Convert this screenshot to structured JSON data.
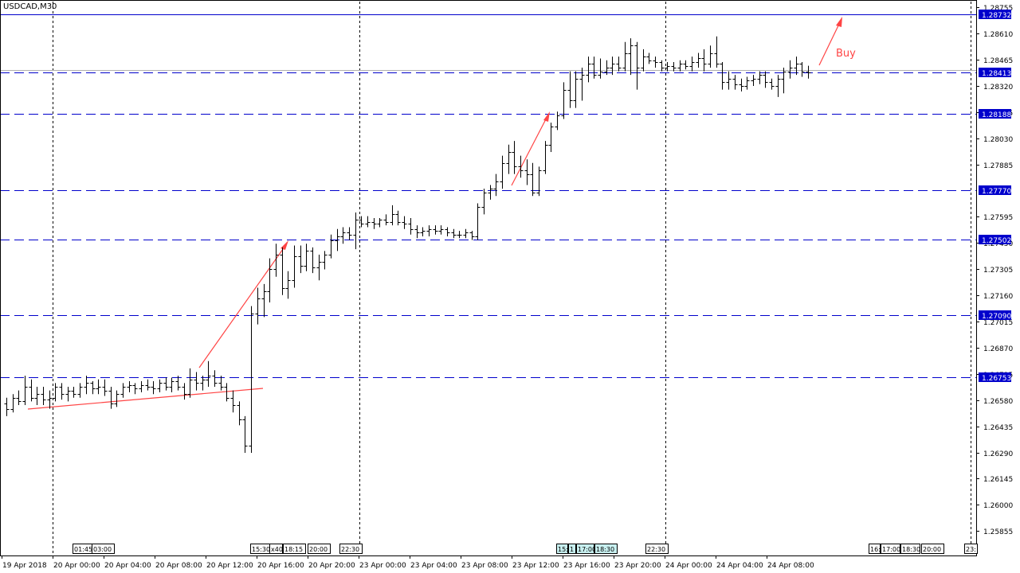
{
  "chart_data": {
    "type": "ohlc",
    "symbol_label": "USDCAD,M30",
    "colors": {
      "bars": "#000000",
      "hlines": "#0000cc",
      "price_box": "#0000cc",
      "trend": "#ff4444",
      "vsep": "#000000",
      "time_marker_bg": "#c8f0f0"
    },
    "y_ticks": [
      "1.28755",
      "1.28610",
      "1.28465",
      "1.28320",
      "1.28175",
      "1.28030",
      "1.27885",
      "1.27595",
      "1.27450",
      "1.27305",
      "1.27160",
      "1.27015",
      "1.26870",
      "1.26725",
      "1.26580",
      "1.26435",
      "1.26290",
      "1.26145",
      "1.26000",
      "1.25855"
    ],
    "ylim": [
      1.2578,
      1.288
    ],
    "hlines": [
      1.28732,
      1.28413,
      1.28188,
      1.2777,
      1.27502,
      1.2709,
      1.26753
    ],
    "hline_labels": [
      "1.28732",
      "1.28413",
      "1.28188",
      "1.27770",
      "1.27502",
      "1.27090",
      "1.26753"
    ],
    "x_labels": [
      "19 Apr 2018",
      "20 Apr 00:00",
      "20 Apr 04:00",
      "20 Apr 08:00",
      "20 Apr 12:00",
      "20 Apr 16:00",
      "20 Apr 20:00",
      "23 Apr 00:00",
      "23 Apr 04:00",
      "23 Apr 08:00",
      "23 Apr 12:00",
      "23 Apr 16:00",
      "23 Apr 20:00",
      "24 Apr 00:00",
      "24 Apr 04:00",
      "24 Apr 08:00"
    ],
    "time_markers": [
      "01:45",
      "03:00",
      "15:30",
      "x40",
      "18:15",
      "20:00",
      "22:30",
      "15:",
      "1",
      "17:00",
      "18:30",
      "22:30",
      "16:",
      "17:00",
      "18:30",
      "20:00",
      "23:"
    ],
    "annotation": "Buy",
    "bars": [
      {
        "o": 1.2661,
        "h": 1.2664,
        "l": 1.2654,
        "c": 1.2658
      },
      {
        "o": 1.2658,
        "h": 1.2666,
        "l": 1.2656,
        "c": 1.2664
      },
      {
        "o": 1.2664,
        "h": 1.2668,
        "l": 1.266,
        "c": 1.2662
      },
      {
        "o": 1.2662,
        "h": 1.2676,
        "l": 1.266,
        "c": 1.267
      },
      {
        "o": 1.267,
        "h": 1.2674,
        "l": 1.2662,
        "c": 1.2664
      },
      {
        "o": 1.2664,
        "h": 1.267,
        "l": 1.266,
        "c": 1.2666
      },
      {
        "o": 1.2666,
        "h": 1.267,
        "l": 1.266,
        "c": 1.2663
      },
      {
        "o": 1.2663,
        "h": 1.2668,
        "l": 1.2658,
        "c": 1.2664
      },
      {
        "o": 1.2664,
        "h": 1.2672,
        "l": 1.2662,
        "c": 1.267
      },
      {
        "o": 1.267,
        "h": 1.2672,
        "l": 1.2663,
        "c": 1.2666
      },
      {
        "o": 1.2666,
        "h": 1.267,
        "l": 1.2662,
        "c": 1.2668
      },
      {
        "o": 1.2668,
        "h": 1.267,
        "l": 1.2664,
        "c": 1.2666
      },
      {
        "o": 1.2666,
        "h": 1.2672,
        "l": 1.2664,
        "c": 1.267
      },
      {
        "o": 1.267,
        "h": 1.2676,
        "l": 1.2666,
        "c": 1.2672
      },
      {
        "o": 1.2672,
        "h": 1.2673,
        "l": 1.2666,
        "c": 1.2669
      },
      {
        "o": 1.2669,
        "h": 1.2674,
        "l": 1.2666,
        "c": 1.267
      },
      {
        "o": 1.267,
        "h": 1.2674,
        "l": 1.2665,
        "c": 1.2668
      },
      {
        "o": 1.2668,
        "h": 1.267,
        "l": 1.2658,
        "c": 1.2661
      },
      {
        "o": 1.2661,
        "h": 1.2668,
        "l": 1.2659,
        "c": 1.2666
      },
      {
        "o": 1.2666,
        "h": 1.2672,
        "l": 1.2664,
        "c": 1.267
      },
      {
        "o": 1.267,
        "h": 1.2673,
        "l": 1.2667,
        "c": 1.2671
      },
      {
        "o": 1.2671,
        "h": 1.2672,
        "l": 1.2666,
        "c": 1.2669
      },
      {
        "o": 1.2669,
        "h": 1.2673,
        "l": 1.2667,
        "c": 1.2671
      },
      {
        "o": 1.2671,
        "h": 1.2674,
        "l": 1.2668,
        "c": 1.267
      },
      {
        "o": 1.267,
        "h": 1.2673,
        "l": 1.2666,
        "c": 1.2669
      },
      {
        "o": 1.2669,
        "h": 1.2674,
        "l": 1.2667,
        "c": 1.2672
      },
      {
        "o": 1.2672,
        "h": 1.2675,
        "l": 1.2668,
        "c": 1.267
      },
      {
        "o": 1.267,
        "h": 1.2675,
        "l": 1.2667,
        "c": 1.2673
      },
      {
        "o": 1.2673,
        "h": 1.2676,
        "l": 1.2668,
        "c": 1.267
      },
      {
        "o": 1.267,
        "h": 1.2672,
        "l": 1.2663,
        "c": 1.2666
      },
      {
        "o": 1.2666,
        "h": 1.268,
        "l": 1.2664,
        "c": 1.2674
      },
      {
        "o": 1.2674,
        "h": 1.2678,
        "l": 1.2668,
        "c": 1.2672
      },
      {
        "o": 1.2672,
        "h": 1.2676,
        "l": 1.2668,
        "c": 1.2674
      },
      {
        "o": 1.2674,
        "h": 1.2684,
        "l": 1.267,
        "c": 1.2676
      },
      {
        "o": 1.2676,
        "h": 1.2679,
        "l": 1.267,
        "c": 1.2672
      },
      {
        "o": 1.2672,
        "h": 1.2676,
        "l": 1.2668,
        "c": 1.267
      },
      {
        "o": 1.267,
        "h": 1.2672,
        "l": 1.2662,
        "c": 1.2664
      },
      {
        "o": 1.2664,
        "h": 1.2668,
        "l": 1.2656,
        "c": 1.266
      },
      {
        "o": 1.266,
        "h": 1.2662,
        "l": 1.2649,
        "c": 1.2652
      },
      {
        "o": 1.2652,
        "h": 1.2654,
        "l": 1.2634,
        "c": 1.2638
      },
      {
        "o": 1.2638,
        "h": 1.2714,
        "l": 1.2634,
        "c": 1.271
      },
      {
        "o": 1.271,
        "h": 1.2724,
        "l": 1.2704,
        "c": 1.2718
      },
      {
        "o": 1.2718,
        "h": 1.2726,
        "l": 1.2708,
        "c": 1.2722
      },
      {
        "o": 1.2722,
        "h": 1.274,
        "l": 1.2716,
        "c": 1.2734
      },
      {
        "o": 1.2734,
        "h": 1.2748,
        "l": 1.273,
        "c": 1.2742
      },
      {
        "o": 1.2742,
        "h": 1.2746,
        "l": 1.272,
        "c": 1.2724
      },
      {
        "o": 1.2724,
        "h": 1.2733,
        "l": 1.2718,
        "c": 1.2728
      },
      {
        "o": 1.2728,
        "h": 1.2747,
        "l": 1.2724,
        "c": 1.2741
      },
      {
        "o": 1.2741,
        "h": 1.2747,
        "l": 1.2732,
        "c": 1.2736
      },
      {
        "o": 1.2736,
        "h": 1.2748,
        "l": 1.2733,
        "c": 1.2744
      },
      {
        "o": 1.2744,
        "h": 1.2746,
        "l": 1.2732,
        "c": 1.2735
      },
      {
        "o": 1.2735,
        "h": 1.2742,
        "l": 1.2728,
        "c": 1.2738
      },
      {
        "o": 1.2738,
        "h": 1.2744,
        "l": 1.2734,
        "c": 1.2742
      },
      {
        "o": 1.2742,
        "h": 1.2753,
        "l": 1.274,
        "c": 1.275
      },
      {
        "o": 1.275,
        "h": 1.2756,
        "l": 1.2744,
        "c": 1.2752
      },
      {
        "o": 1.2752,
        "h": 1.2757,
        "l": 1.2748,
        "c": 1.2754
      },
      {
        "o": 1.2754,
        "h": 1.2757,
        "l": 1.275,
        "c": 1.2753
      },
      {
        "o": 1.2753,
        "h": 1.2765,
        "l": 1.2745,
        "c": 1.2761
      },
      {
        "o": 1.2761,
        "h": 1.2763,
        "l": 1.2757,
        "c": 1.2759
      },
      {
        "o": 1.2759,
        "h": 1.2763,
        "l": 1.2757,
        "c": 1.276
      },
      {
        "o": 1.276,
        "h": 1.2762,
        "l": 1.2756,
        "c": 1.2759
      },
      {
        "o": 1.2759,
        "h": 1.2762,
        "l": 1.2757,
        "c": 1.2761
      },
      {
        "o": 1.2761,
        "h": 1.2764,
        "l": 1.2758,
        "c": 1.276
      },
      {
        "o": 1.276,
        "h": 1.2769,
        "l": 1.2758,
        "c": 1.2764
      },
      {
        "o": 1.2764,
        "h": 1.2766,
        "l": 1.2758,
        "c": 1.276
      },
      {
        "o": 1.276,
        "h": 1.2763,
        "l": 1.2756,
        "c": 1.2759
      },
      {
        "o": 1.2759,
        "h": 1.2762,
        "l": 1.2753,
        "c": 1.2756
      },
      {
        "o": 1.2756,
        "h": 1.2758,
        "l": 1.2751,
        "c": 1.2754
      },
      {
        "o": 1.2754,
        "h": 1.2757,
        "l": 1.2752,
        "c": 1.2755
      },
      {
        "o": 1.2755,
        "h": 1.2758,
        "l": 1.2752,
        "c": 1.2756
      },
      {
        "o": 1.2756,
        "h": 1.2758,
        "l": 1.2753,
        "c": 1.2755
      },
      {
        "o": 1.2755,
        "h": 1.2758,
        "l": 1.2753,
        "c": 1.2756
      },
      {
        "o": 1.2756,
        "h": 1.2757,
        "l": 1.2752,
        "c": 1.2754
      },
      {
        "o": 1.2754,
        "h": 1.2756,
        "l": 1.2751,
        "c": 1.2753
      },
      {
        "o": 1.2753,
        "h": 1.2755,
        "l": 1.2751,
        "c": 1.2753
      },
      {
        "o": 1.2753,
        "h": 1.2756,
        "l": 1.2751,
        "c": 1.2754
      },
      {
        "o": 1.2754,
        "h": 1.2755,
        "l": 1.275,
        "c": 1.2752
      },
      {
        "o": 1.2752,
        "h": 1.277,
        "l": 1.275,
        "c": 1.2768
      },
      {
        "o": 1.2768,
        "h": 1.2778,
        "l": 1.2764,
        "c": 1.2776
      },
      {
        "o": 1.2776,
        "h": 1.278,
        "l": 1.2772,
        "c": 1.2778
      },
      {
        "o": 1.2778,
        "h": 1.2786,
        "l": 1.2774,
        "c": 1.2782
      },
      {
        "o": 1.2782,
        "h": 1.2796,
        "l": 1.2778,
        "c": 1.2792
      },
      {
        "o": 1.2792,
        "h": 1.2802,
        "l": 1.2786,
        "c": 1.2798
      },
      {
        "o": 1.2798,
        "h": 1.2804,
        "l": 1.2786,
        "c": 1.279
      },
      {
        "o": 1.279,
        "h": 1.2796,
        "l": 1.2784,
        "c": 1.2788
      },
      {
        "o": 1.2788,
        "h": 1.2794,
        "l": 1.278,
        "c": 1.2786
      },
      {
        "o": 1.2786,
        "h": 1.2792,
        "l": 1.2774,
        "c": 1.2776
      },
      {
        "o": 1.2776,
        "h": 1.279,
        "l": 1.2774,
        "c": 1.2788
      },
      {
        "o": 1.2788,
        "h": 1.2804,
        "l": 1.2786,
        "c": 1.2802
      },
      {
        "o": 1.2802,
        "h": 1.2814,
        "l": 1.2798,
        "c": 1.2812
      },
      {
        "o": 1.2812,
        "h": 1.282,
        "l": 1.281,
        "c": 1.2818
      },
      {
        "o": 1.2818,
        "h": 1.2836,
        "l": 1.2816,
        "c": 1.2832
      },
      {
        "o": 1.2832,
        "h": 1.2842,
        "l": 1.2822,
        "c": 1.2826
      },
      {
        "o": 1.2826,
        "h": 1.2842,
        "l": 1.2822,
        "c": 1.2838
      },
      {
        "o": 1.2838,
        "h": 1.2844,
        "l": 1.2826,
        "c": 1.284
      },
      {
        "o": 1.284,
        "h": 1.285,
        "l": 1.2836,
        "c": 1.2846
      },
      {
        "o": 1.2846,
        "h": 1.285,
        "l": 1.2838,
        "c": 1.284
      },
      {
        "o": 1.284,
        "h": 1.2849,
        "l": 1.2838,
        "c": 1.2842
      },
      {
        "o": 1.2842,
        "h": 1.2848,
        "l": 1.284,
        "c": 1.2844
      },
      {
        "o": 1.2844,
        "h": 1.285,
        "l": 1.284,
        "c": 1.2846
      },
      {
        "o": 1.2846,
        "h": 1.285,
        "l": 1.2842,
        "c": 1.2844
      },
      {
        "o": 1.2844,
        "h": 1.2858,
        "l": 1.2842,
        "c": 1.2852
      },
      {
        "o": 1.2852,
        "h": 1.286,
        "l": 1.284,
        "c": 1.2856
      },
      {
        "o": 1.2856,
        "h": 1.2858,
        "l": 1.2832,
        "c": 1.2844
      },
      {
        "o": 1.2844,
        "h": 1.2854,
        "l": 1.2842,
        "c": 1.285
      },
      {
        "o": 1.285,
        "h": 1.2852,
        "l": 1.2846,
        "c": 1.2848
      },
      {
        "o": 1.2848,
        "h": 1.285,
        "l": 1.2844,
        "c": 1.2847
      },
      {
        "o": 1.2847,
        "h": 1.2848,
        "l": 1.2842,
        "c": 1.2844
      },
      {
        "o": 1.2844,
        "h": 1.2847,
        "l": 1.2842,
        "c": 1.2845
      },
      {
        "o": 1.2845,
        "h": 1.2847,
        "l": 1.2842,
        "c": 1.2844
      },
      {
        "o": 1.2844,
        "h": 1.2848,
        "l": 1.2842,
        "c": 1.2846
      },
      {
        "o": 1.2846,
        "h": 1.2848,
        "l": 1.2843,
        "c": 1.2845
      },
      {
        "o": 1.2845,
        "h": 1.285,
        "l": 1.2842,
        "c": 1.2847
      },
      {
        "o": 1.2847,
        "h": 1.2852,
        "l": 1.2844,
        "c": 1.2849
      },
      {
        "o": 1.2849,
        "h": 1.2854,
        "l": 1.2842,
        "c": 1.2846
      },
      {
        "o": 1.2846,
        "h": 1.2856,
        "l": 1.2844,
        "c": 1.2852
      },
      {
        "o": 1.2852,
        "h": 1.2861,
        "l": 1.2844,
        "c": 1.2846
      },
      {
        "o": 1.2846,
        "h": 1.2847,
        "l": 1.2832,
        "c": 1.2836
      },
      {
        "o": 1.2836,
        "h": 1.2842,
        "l": 1.2832,
        "c": 1.2838
      },
      {
        "o": 1.2838,
        "h": 1.284,
        "l": 1.2832,
        "c": 1.2835
      },
      {
        "o": 1.2835,
        "h": 1.2838,
        "l": 1.2831,
        "c": 1.2834
      },
      {
        "o": 1.2834,
        "h": 1.2839,
        "l": 1.2832,
        "c": 1.2837
      },
      {
        "o": 1.2837,
        "h": 1.284,
        "l": 1.2834,
        "c": 1.2838
      },
      {
        "o": 1.2838,
        "h": 1.2842,
        "l": 1.2835,
        "c": 1.284
      },
      {
        "o": 1.284,
        "h": 1.2842,
        "l": 1.2833,
        "c": 1.2836
      },
      {
        "o": 1.2836,
        "h": 1.2838,
        "l": 1.2832,
        "c": 1.2834
      },
      {
        "o": 1.2834,
        "h": 1.284,
        "l": 1.2828,
        "c": 1.2838
      },
      {
        "o": 1.2838,
        "h": 1.2844,
        "l": 1.283,
        "c": 1.2842
      },
      {
        "o": 1.2842,
        "h": 1.2848,
        "l": 1.2838,
        "c": 1.2844
      },
      {
        "o": 1.2844,
        "h": 1.285,
        "l": 1.284,
        "c": 1.2846
      },
      {
        "o": 1.2846,
        "h": 1.2847,
        "l": 1.2839,
        "c": 1.2842
      },
      {
        "o": 1.2842,
        "h": 1.2845,
        "l": 1.2838,
        "c": 1.28413
      }
    ]
  }
}
